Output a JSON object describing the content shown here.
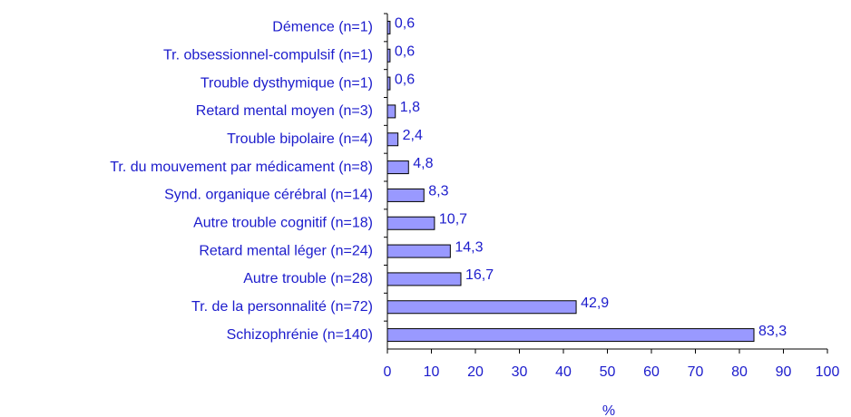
{
  "chart_data": {
    "type": "barh",
    "categories": [
      "Démence (n=1)",
      "Tr. obsessionnel-compulsif (n=1)",
      "Trouble dysthymique (n=1)",
      "Retard mental moyen (n=3)",
      "Trouble bipolaire (n=4)",
      "Tr. du mouvement par médicament (n=8)",
      "Synd. organique cérébral (n=14)",
      "Autre trouble cognitif (n=18)",
      "Retard mental léger (n=24)",
      "Autre trouble (n=28)",
      "Tr. de la personnalité (n=72)",
      "Schizophrénie (n=140)"
    ],
    "values": [
      0.6,
      0.6,
      0.6,
      1.8,
      2.4,
      4.8,
      8.3,
      10.7,
      14.3,
      16.7,
      42.9,
      83.3
    ],
    "value_labels": [
      "0,6",
      "0,6",
      "0,6",
      "1,8",
      "2,4",
      "4,8",
      "8,3",
      "10,7",
      "14,3",
      "16,7",
      "42,9",
      "83,3"
    ],
    "color": "#9999ff",
    "xlabel": "%",
    "xlim": [
      0,
      100
    ],
    "xticks": [
      0,
      10,
      20,
      30,
      40,
      50,
      60,
      70,
      80,
      90,
      100
    ]
  }
}
